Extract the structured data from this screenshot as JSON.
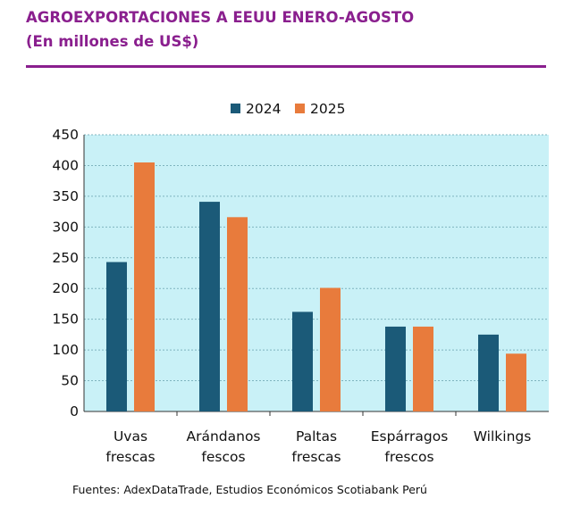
{
  "header": {
    "title": "AGROEXPORTACIONES A EEUU ENERO-AGOSTO",
    "subtitle": "(En millones de US$)"
  },
  "chart_data": {
    "type": "bar",
    "categories": [
      [
        "Uvas",
        "frescas"
      ],
      [
        "Arándanos",
        "fescos"
      ],
      [
        "Paltas",
        "frescas"
      ],
      [
        "Espárragos",
        "frescos"
      ],
      [
        "Wilkings"
      ]
    ],
    "series": [
      {
        "name": "2024",
        "color": "#1b5a78",
        "values": [
          243,
          341,
          162,
          138,
          125
        ]
      },
      {
        "name": "2025",
        "color": "#e87b3c",
        "values": [
          405,
          316,
          201,
          138,
          94
        ]
      }
    ],
    "ylim": [
      0,
      450
    ],
    "yticks": [
      "0",
      "50",
      "100",
      "150",
      "200",
      "250",
      "300",
      "350",
      "400",
      "450"
    ],
    "legend_position": "top-center",
    "grid": true,
    "plot_background": "#c9f1f7",
    "grid_color": "#7fb4bf"
  },
  "footer": {
    "source": "Fuentes: AdexDataTrade, Estudios Económicos Scotiabank Perú"
  }
}
